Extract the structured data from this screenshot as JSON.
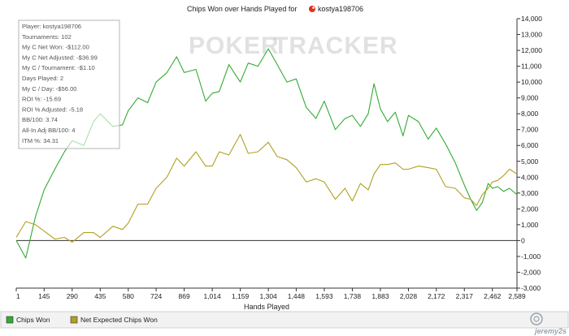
{
  "chart_data": {
    "type": "line",
    "title_prefix": "Chips Won over Hands Played for",
    "player_name": "kostya198706",
    "xlabel": "Hands Played",
    "xlim": [
      1,
      2589
    ],
    "ylim": [
      -3000,
      14000
    ],
    "x_ticks": [
      "1",
      "145",
      "290",
      "435",
      "580",
      "724",
      "869",
      "1,014",
      "1,159",
      "1,304",
      "1,448",
      "1,593",
      "1,738",
      "1,883",
      "2,028",
      "2,172",
      "2,317",
      "2,462",
      "2,589"
    ],
    "y_ticks": [
      "14,000",
      "13,000",
      "12,000",
      "11,000",
      "10,000",
      "9,000",
      "8,000",
      "7,000",
      "6,000",
      "5,000",
      "4,000",
      "3,000",
      "2,000",
      "1,000",
      "0",
      "-1,000",
      "-2,000",
      "-3,000"
    ],
    "series": [
      {
        "name": "Chips Won",
        "color": "#33aa33",
        "x": [
          1,
          50,
          100,
          145,
          200,
          250,
          290,
          350,
          400,
          435,
          500,
          550,
          580,
          630,
          680,
          724,
          780,
          830,
          869,
          930,
          980,
          1014,
          1050,
          1100,
          1159,
          1200,
          1250,
          1304,
          1350,
          1400,
          1448,
          1500,
          1550,
          1593,
          1650,
          1700,
          1738,
          1780,
          1820,
          1850,
          1883,
          1920,
          1960,
          2000,
          2028,
          2080,
          2130,
          2172,
          2220,
          2270,
          2317,
          2350,
          2380,
          2410,
          2440,
          2462,
          2490,
          2520,
          2550,
          2589
        ],
        "values": [
          0,
          -1100,
          1500,
          3200,
          4500,
          5600,
          6300,
          6000,
          7500,
          8000,
          7200,
          7300,
          8200,
          9000,
          8700,
          10000,
          10600,
          11600,
          10600,
          10800,
          8800,
          9300,
          9400,
          11100,
          10000,
          11200,
          11000,
          12100,
          11100,
          10000,
          10200,
          8400,
          7700,
          8800,
          7000,
          7700,
          7900,
          7200,
          8000,
          9900,
          8300,
          7500,
          8100,
          6600,
          7900,
          7500,
          6400,
          7100,
          6100,
          4900,
          3500,
          2600,
          1900,
          2400,
          3600,
          3300,
          3400,
          3100,
          3300,
          2900
        ]
      },
      {
        "name": "Net Expected Chips Won",
        "color": "#b0a020",
        "x": [
          1,
          50,
          100,
          145,
          200,
          250,
          290,
          350,
          400,
          435,
          500,
          550,
          580,
          630,
          680,
          724,
          780,
          830,
          869,
          930,
          980,
          1014,
          1050,
          1100,
          1159,
          1200,
          1250,
          1304,
          1350,
          1400,
          1448,
          1500,
          1550,
          1593,
          1650,
          1700,
          1738,
          1780,
          1820,
          1850,
          1883,
          1920,
          1960,
          2000,
          2028,
          2080,
          2130,
          2172,
          2220,
          2270,
          2317,
          2350,
          2380,
          2410,
          2440,
          2462,
          2490,
          2520,
          2550,
          2589
        ],
        "values": [
          200,
          1200,
          1000,
          600,
          100,
          200,
          -100,
          500,
          500,
          200,
          900,
          700,
          1100,
          2300,
          2300,
          3300,
          4000,
          5200,
          4700,
          5600,
          4700,
          4700,
          5600,
          5400,
          6700,
          5500,
          5600,
          6200,
          5300,
          5100,
          4600,
          3700,
          3900,
          3700,
          2600,
          3300,
          2500,
          3600,
          3200,
          4200,
          4800,
          4800,
          4900,
          4500,
          4500,
          4700,
          4600,
          4500,
          3400,
          3300,
          2700,
          2600,
          2200,
          2900,
          3300,
          3700,
          3800,
          4100,
          4500,
          4200
        ]
      }
    ]
  },
  "stats": [
    "Player: kostya198706",
    "Tournaments: 102",
    "My C Net Won: -$112.00",
    "My C Net Adjusted: -$36.99",
    "My C / Tournament: -$1.10",
    "Days Played: 2",
    "My C / Day: -$56.00",
    "ROI %: -15.69",
    "ROI % Adjusted: -5.18",
    "BB/100: 3.74",
    "All-In Adj BB/100: 4",
    "ITM %: 34.31"
  ],
  "watermark": {
    "left": "POKER",
    "right": "TRACKER"
  },
  "corner_mark": "jeremy2s"
}
